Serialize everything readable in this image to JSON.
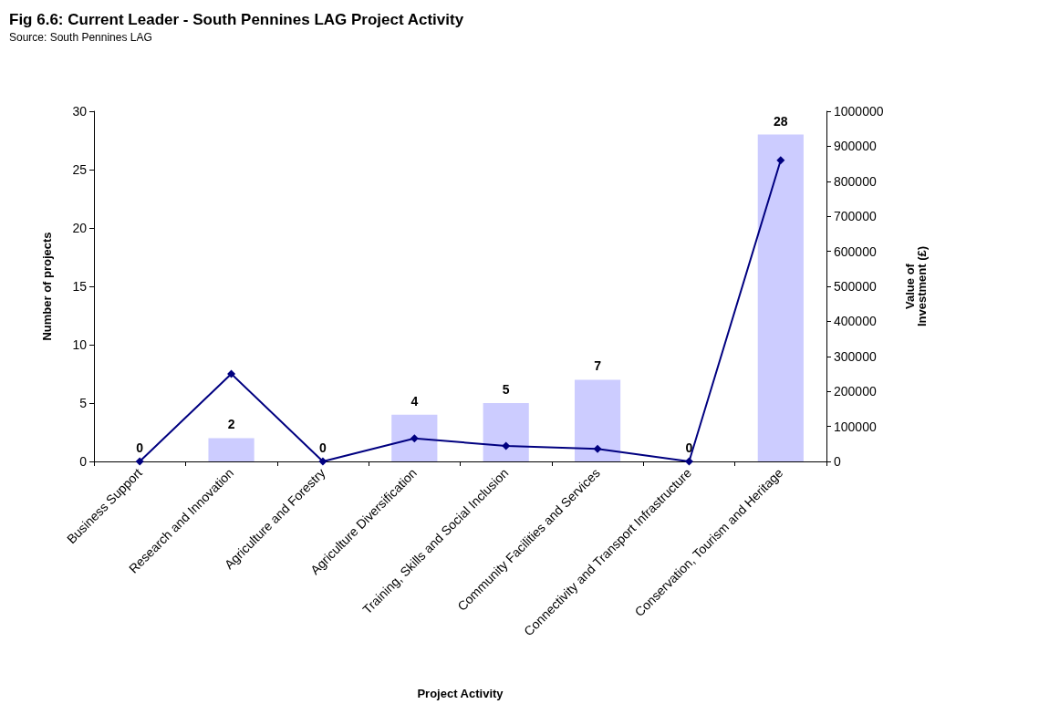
{
  "chart_data": {
    "type": "bar",
    "title": "Fig 6.6: Current Leader - South Pennines LAG Project Activity",
    "annotations": [
      "Source: South Pennines LAG"
    ],
    "xlabel": "Project Activity",
    "ylabel": "Number of projects",
    "y2label": "Value of\nInvestment (£)",
    "categories": [
      "Business Support",
      "Research and Innovation",
      "Agriculture and Forestry",
      "Agriculture Diversification",
      "Training, Skills and Social Inclusion",
      "Community Facilities and Services",
      "Connectivity and Transport Infrastructure",
      "Conservation, Tourism and Heritage"
    ],
    "series": [
      {
        "color": "#ccccff",
        "values": [
          0,
          2,
          0,
          4,
          5,
          7,
          0,
          28
        ],
        "value_labels": [
          "0",
          "2",
          "0",
          "4",
          "5",
          "7",
          "0",
          "28"
        ]
      },
      {
        "type": "line",
        "axis": "y2",
        "color": "#000080",
        "marker": "diamond",
        "line_style": "solid",
        "values": [
          0,
          250000,
          0,
          66000,
          44000,
          36000,
          0,
          860000
        ]
      }
    ],
    "ylim": [
      0,
      30
    ],
    "yticks": [
      0,
      5,
      10,
      15,
      20,
      25,
      30
    ],
    "y2lim": [
      0,
      1000000
    ],
    "y2ticks": [
      0,
      100000,
      200000,
      300000,
      400000,
      500000,
      600000,
      700000,
      800000,
      900000,
      1000000
    ]
  }
}
